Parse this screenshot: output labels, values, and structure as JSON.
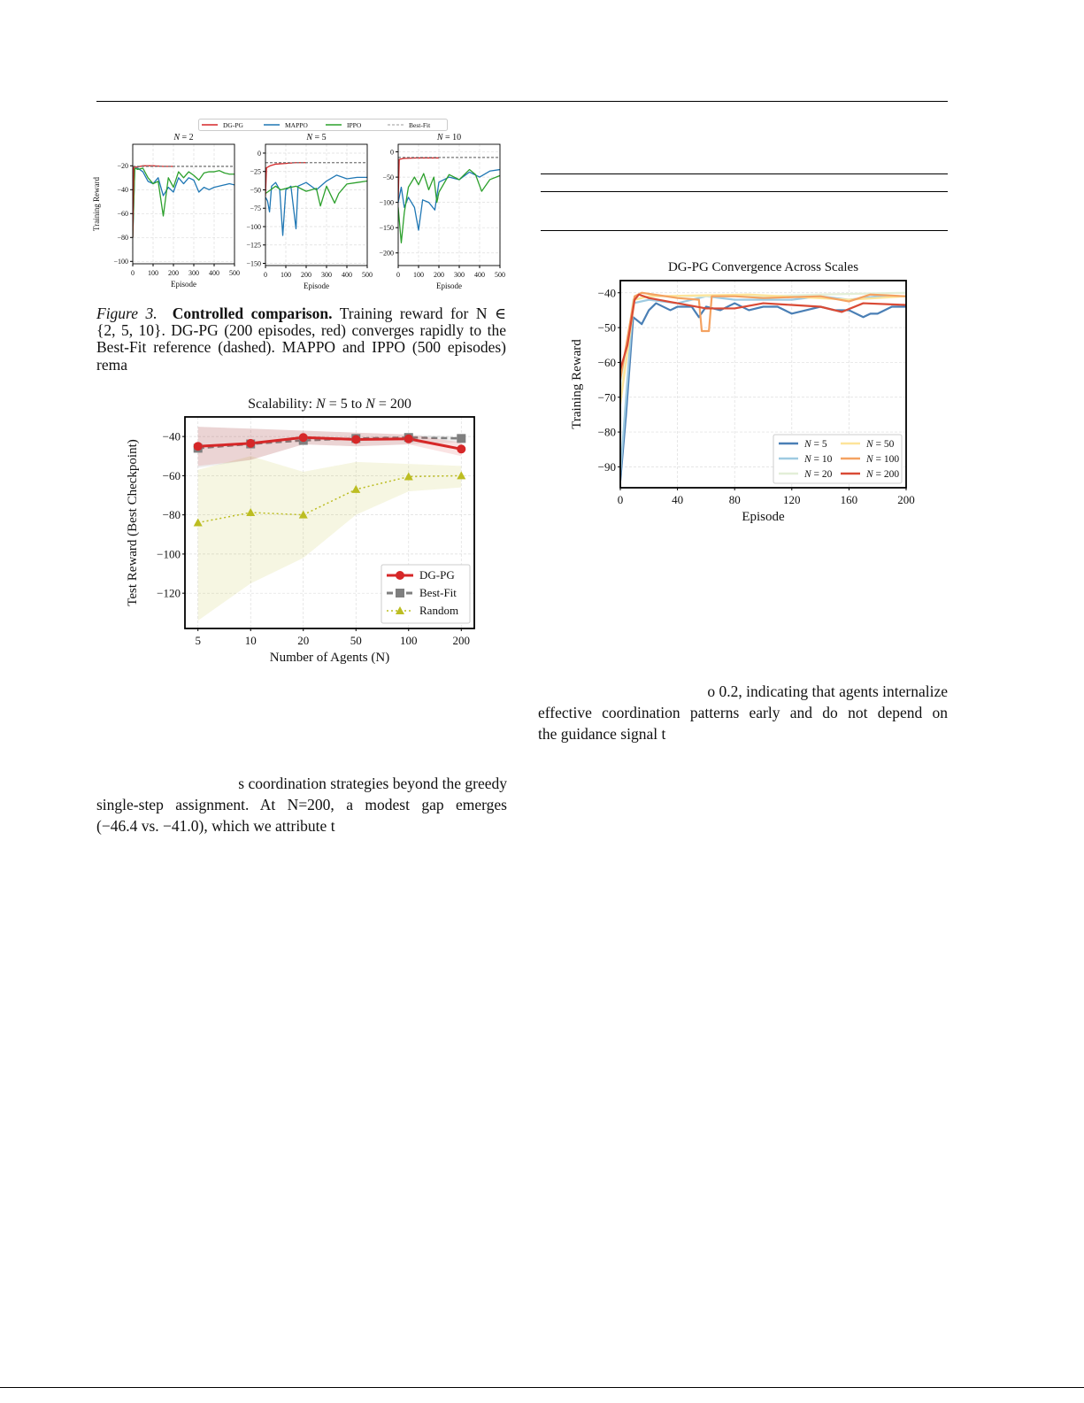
{
  "figure3": {
    "legend": [
      {
        "name": "DG-PG",
        "color": "#d62728",
        "dash": ""
      },
      {
        "name": "MAPPO",
        "color": "#1f77b4",
        "dash": ""
      },
      {
        "name": "IPPO",
        "color": "#2ca02c",
        "dash": ""
      },
      {
        "name": "Best-Fit",
        "color": "#777777",
        "dash": "3,2"
      }
    ],
    "caption": {
      "label": "Figure 3.",
      "title": "Controlled comparison.",
      "lines": [
        "Training reward for N ∈",
        "{2, 5, 10}. DG-PG (200 episodes, red) converges rapidly to the",
        "Best-Fit reference (dashed). MAPPO and IPPO (500 episodes)",
        "rema"
      ]
    }
  },
  "chart_data": [
    {
      "type": "line",
      "title": "N = 2",
      "xlabel": "Episode",
      "ylabel": "Training Reward",
      "xlim": [
        0,
        500
      ],
      "ylim": [
        -102,
        -2
      ],
      "xticks": [
        0,
        100,
        200,
        300,
        400,
        500
      ],
      "yticks": [
        -20,
        -40,
        -60,
        -80,
        -100
      ],
      "series": [
        {
          "name": "MAPPO",
          "color": "#1f77b4",
          "x": [
            0,
            10,
            25,
            50,
            75,
            100,
            125,
            150,
            175,
            200,
            225,
            250,
            275,
            300,
            325,
            350,
            375,
            400,
            425,
            450,
            475,
            500
          ],
          "y": [
            -80,
            -22,
            -22,
            -25,
            -33,
            -35,
            -30,
            -45,
            -38,
            -42,
            -30,
            -35,
            -30,
            -32,
            -42,
            -38,
            -40,
            -38,
            -37,
            -36,
            -35,
            -36
          ]
        },
        {
          "name": "IPPO",
          "color": "#2ca02c",
          "x": [
            0,
            10,
            25,
            50,
            75,
            100,
            125,
            150,
            175,
            200,
            225,
            250,
            275,
            300,
            325,
            350,
            375,
            400,
            425,
            450,
            475,
            500
          ],
          "y": [
            -80,
            -22,
            -23,
            -22,
            -30,
            -35,
            -33,
            -62,
            -30,
            -38,
            -25,
            -30,
            -25,
            -28,
            -32,
            -26,
            -25,
            -25,
            -24,
            -26,
            -27,
            -27
          ]
        },
        {
          "name": "DG-PG",
          "color": "#d62728",
          "x": [
            0,
            5,
            25,
            50,
            100,
            150,
            200
          ],
          "y": [
            -80,
            -21,
            -21,
            -20,
            -20,
            -20.5,
            -20.5
          ]
        },
        {
          "name": "Best-Fit",
          "color": "#777777",
          "dash": "3,2",
          "x": [
            0,
            500
          ],
          "y": [
            -20.5,
            -20.5
          ]
        }
      ]
    },
    {
      "type": "line",
      "title": "N = 5",
      "xlabel": "Episode",
      "ylabel": "",
      "xlim": [
        0,
        500
      ],
      "ylim": [
        -153,
        12
      ],
      "xticks": [
        0,
        100,
        200,
        300,
        400,
        500
      ],
      "yticks": [
        0,
        -25,
        -50,
        -75,
        -100,
        -125,
        -150
      ],
      "series": [
        {
          "name": "MAPPO",
          "color": "#1f77b4",
          "x": [
            0,
            10,
            20,
            30,
            50,
            70,
            85,
            100,
            125,
            150,
            160,
            200,
            250,
            300,
            350,
            400,
            450,
            500
          ],
          "y": [
            -60,
            -65,
            -80,
            -45,
            -40,
            -50,
            -112,
            -50,
            -45,
            -103,
            -45,
            -40,
            -50,
            -38,
            -30,
            -35,
            -33,
            -33
          ]
        },
        {
          "name": "IPPO",
          "color": "#2ca02c",
          "x": [
            0,
            25,
            50,
            75,
            100,
            150,
            200,
            250,
            270,
            300,
            340,
            360,
            400,
            450,
            500
          ],
          "y": [
            -55,
            -50,
            -45,
            -50,
            -48,
            -45,
            -52,
            -48,
            -72,
            -45,
            -68,
            -55,
            -42,
            -40,
            -38
          ]
        },
        {
          "name": "DG-PG",
          "color": "#d62728",
          "x": [
            0,
            5,
            25,
            50,
            100,
            150,
            200
          ],
          "y": [
            -58,
            -20,
            -17,
            -15,
            -14,
            -13,
            -13
          ]
        },
        {
          "name": "Best-Fit",
          "color": "#777777",
          "dash": "3,2",
          "x": [
            0,
            500
          ],
          "y": [
            -13,
            -13
          ]
        }
      ]
    },
    {
      "type": "line",
      "title": "N = 10",
      "xlabel": "Episode",
      "ylabel": "",
      "xlim": [
        0,
        500
      ],
      "ylim": [
        -225,
        15
      ],
      "xticks": [
        0,
        100,
        200,
        300,
        400,
        500
      ],
      "yticks": [
        0,
        -50,
        -100,
        -150,
        -200
      ],
      "series": [
        {
          "name": "MAPPO",
          "color": "#1f77b4",
          "x": [
            0,
            15,
            30,
            50,
            80,
            100,
            120,
            150,
            180,
            200,
            250,
            300,
            350,
            400,
            450,
            500
          ],
          "y": [
            -100,
            -70,
            -110,
            -90,
            -110,
            -155,
            -95,
            -100,
            -115,
            -60,
            -50,
            -55,
            -40,
            -50,
            -38,
            -35
          ]
        },
        {
          "name": "IPPO",
          "color": "#2ca02c",
          "x": [
            0,
            15,
            30,
            50,
            80,
            100,
            125,
            150,
            175,
            190,
            200,
            250,
            300,
            350,
            380,
            410,
            450,
            500
          ],
          "y": [
            -110,
            -180,
            -120,
            -70,
            -50,
            -65,
            -43,
            -75,
            -50,
            -100,
            -80,
            -45,
            -55,
            -35,
            -45,
            -78,
            -55,
            -47
          ]
        },
        {
          "name": "DG-PG",
          "color": "#d62728",
          "x": [
            0,
            5,
            25,
            100,
            200
          ],
          "y": [
            -95,
            -15,
            -13,
            -12,
            -12
          ]
        },
        {
          "name": "Best-Fit",
          "color": "#777777",
          "dash": "3,2",
          "x": [
            0,
            500
          ],
          "y": [
            -11,
            -11
          ]
        }
      ]
    },
    {
      "type": "line",
      "title": "Scalability: N = 5 to N = 200",
      "xlabel": "Number of Agents (N)",
      "ylabel": "Test Reward (Best Checkpoint)",
      "categories": [
        "5",
        "10",
        "20",
        "50",
        "100",
        "200"
      ],
      "ylim": [
        -138,
        -30
      ],
      "yticks": [
        -40,
        -60,
        -80,
        -100,
        -120
      ],
      "legend": "bottom-right",
      "series": [
        {
          "name": "Random",
          "color": "#bcbd22",
          "dash": "2,3",
          "marker": "triangle",
          "values": [
            -84,
            -78.8,
            -80,
            -67,
            -60.5,
            -60
          ],
          "band_low": [
            -134,
            -115,
            -102,
            -80,
            -68,
            -66
          ],
          "band_high": [
            -57,
            -50,
            -58,
            -53,
            -54,
            -55
          ]
        },
        {
          "name": "Best-Fit",
          "color": "#7f7f7f",
          "dash": "7,4",
          "marker": "square",
          "values": [
            -46,
            -43.8,
            -42,
            -41,
            -40.5,
            -41.0
          ],
          "band_low": [
            -56,
            -52,
            -44,
            -45,
            -44,
            -43
          ],
          "band_high": [
            -35,
            -36,
            -37,
            -38,
            -39,
            -40
          ]
        },
        {
          "name": "DG-PG",
          "color": "#d62728",
          "dash": "",
          "marker": "circle",
          "values": [
            -45,
            -43.5,
            -40.5,
            -41.5,
            -41.2,
            -46.4
          ],
          "band_low": [
            -55,
            -52,
            -44,
            -45,
            -44,
            -50
          ],
          "band_high": [
            -35,
            -36,
            -37,
            -38,
            -39,
            -43
          ]
        }
      ]
    },
    {
      "type": "line",
      "title": "DG-PG Convergence Across Scales",
      "xlabel": "Episode",
      "ylabel": "Training Reward",
      "xlim": [
        0,
        200
      ],
      "ylim": [
        -96,
        -36.5
      ],
      "xticks": [
        0,
        40,
        80,
        120,
        160,
        200
      ],
      "yticks": [
        -40,
        -50,
        -60,
        -70,
        -80,
        -90
      ],
      "legend": "bottom-right",
      "series": [
        {
          "name": "N = 5",
          "color": "#4a7fb5",
          "x": [
            0,
            4,
            9,
            15,
            20,
            25,
            35,
            40,
            50,
            55,
            60,
            70,
            80,
            90,
            100,
            110,
            120,
            130,
            140,
            150,
            160,
            170,
            175,
            180,
            190,
            200
          ],
          "y": [
            -94,
            -75,
            -47,
            -49,
            -45,
            -43,
            -45,
            -44,
            -44,
            -47,
            -44,
            -45,
            -43,
            -45,
            -44,
            -44,
            -46,
            -45,
            -44,
            -45,
            -45,
            -47,
            -46,
            -46,
            -44,
            -44
          ]
        },
        {
          "name": "N = 10",
          "color": "#9ecae1",
          "x": [
            0,
            9,
            20,
            40,
            60,
            80,
            100,
            120,
            140,
            160,
            180,
            200
          ],
          "y": [
            -92,
            -43,
            -42,
            -43,
            -41,
            -42,
            -42,
            -42,
            -41,
            -42,
            -41,
            -41
          ]
        },
        {
          "name": "N = 20",
          "color": "#e3efd8",
          "x": [
            0,
            9,
            20,
            60,
            100,
            140,
            200
          ],
          "y": [
            -70,
            -42,
            -41,
            -41,
            -41,
            -40.5,
            -40
          ]
        },
        {
          "name": "N = 50",
          "color": "#fde49a",
          "x": [
            0,
            10,
            20,
            90,
            160,
            200
          ],
          "y": [
            -72,
            -42,
            -41,
            -40.5,
            -42,
            -41
          ]
        },
        {
          "name": "N = 100",
          "color": "#f4a261",
          "x": [
            0,
            10,
            15,
            40,
            55,
            57,
            62,
            64,
            80,
            100,
            140,
            160,
            175,
            200
          ],
          "y": [
            -65,
            -41,
            -40,
            -41.5,
            -42,
            -51,
            -51,
            -41,
            -41,
            -41.5,
            -41,
            -42.5,
            -40.5,
            -41
          ]
        },
        {
          "name": "N = 200",
          "color": "#d94a35",
          "x": [
            0,
            5,
            10,
            13,
            20,
            40,
            60,
            80,
            100,
            120,
            140,
            155,
            170,
            200
          ],
          "y": [
            -62,
            -55,
            -42,
            -40.5,
            -41.5,
            -43,
            -44.5,
            -44.5,
            -43,
            -43.5,
            -44,
            -45.5,
            -43,
            -43.5
          ]
        }
      ]
    }
  ],
  "right_text": [
    "o 0.2, indicating that agents internalize",
    "effective coordination patterns early and do not depend on",
    "the guidance signal t"
  ],
  "left_text": [
    "s coordination strategies beyond the greedy",
    "single-step assignment. At N=200, a modest gap emerges",
    "(−46.4 vs. −41.0), which we attribute t"
  ]
}
